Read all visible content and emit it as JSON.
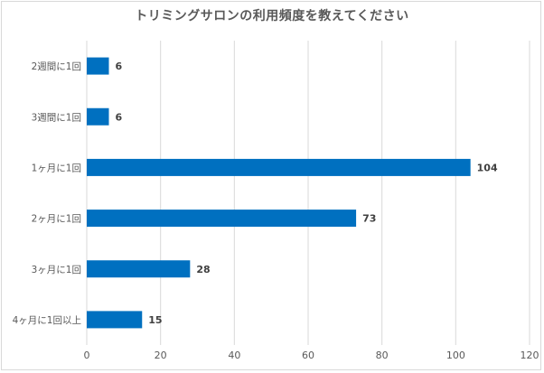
{
  "chart_data": {
    "type": "bar",
    "orientation": "horizontal",
    "title": "トリミングサロンの利用頻度を教えてください",
    "categories": [
      "2週間に1回",
      "3週間に1回",
      "1ヶ月に1回",
      "2ヶ月に1回",
      "3ヶ月に1回",
      "4ヶ月に1回以上"
    ],
    "values": [
      6,
      6,
      104,
      73,
      28,
      15
    ],
    "xlim": [
      0,
      120
    ],
    "xticks": [
      0,
      20,
      40,
      60,
      80,
      100,
      120
    ],
    "grid": true,
    "data_labels": true,
    "bar_color": "#0070c0",
    "grid_color": "#d9d9d9"
  }
}
